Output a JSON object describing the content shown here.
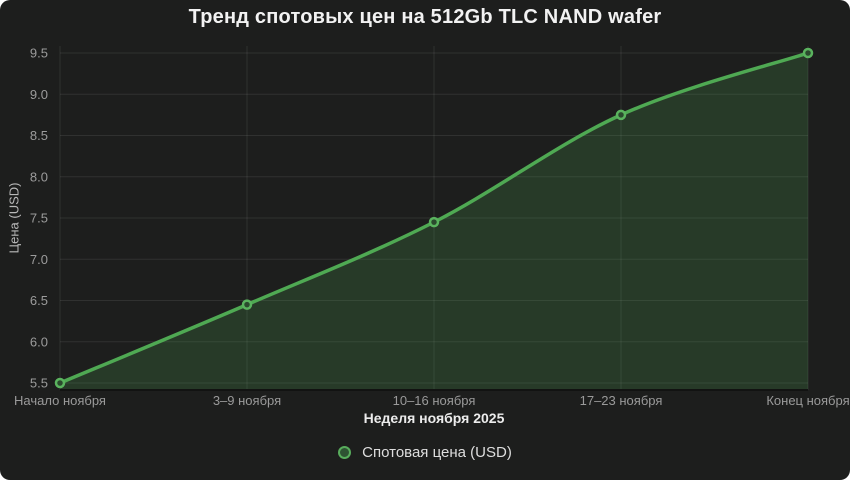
{
  "chart_data": {
    "type": "line",
    "title": "Тренд спотовых цен на 512Gb TLC NAND wafer",
    "categories": [
      "Начало ноября",
      "3–9 ноября",
      "10–16 ноября",
      "17–23 ноября",
      "Конец ноября"
    ],
    "series": [
      {
        "name": "Спотовая цена (USD)",
        "values": [
          5.5,
          6.45,
          7.45,
          8.75,
          9.5
        ],
        "color": "#4fa953",
        "marker": "open-circle"
      }
    ],
    "xlabel": "Неделя ноября 2025",
    "ylabel": "Цена (USD)",
    "ylim": [
      5.5,
      9.5
    ],
    "yticks": [
      5.5,
      6.0,
      6.5,
      7.0,
      7.5,
      8.0,
      8.5,
      9.0,
      9.5
    ],
    "grid": true,
    "line_shape": "spline",
    "area_fill": true,
    "legend_position": "bottom"
  },
  "legend": {
    "items": [
      {
        "label": "Спотовая цена (USD)",
        "color": "#4fa953"
      }
    ]
  },
  "colors": {
    "background": "#1d1e1d",
    "line": "#4fa953",
    "area": "rgba(79,169,83,0.20)",
    "grid": "rgba(255,255,255,0.085)",
    "axis_line": "#121312",
    "tick_text": "#9c9c9c",
    "title_text": "#f2f2f2",
    "marker_fill": "#2b4a2e",
    "marker_stroke": "#5ab35e"
  }
}
